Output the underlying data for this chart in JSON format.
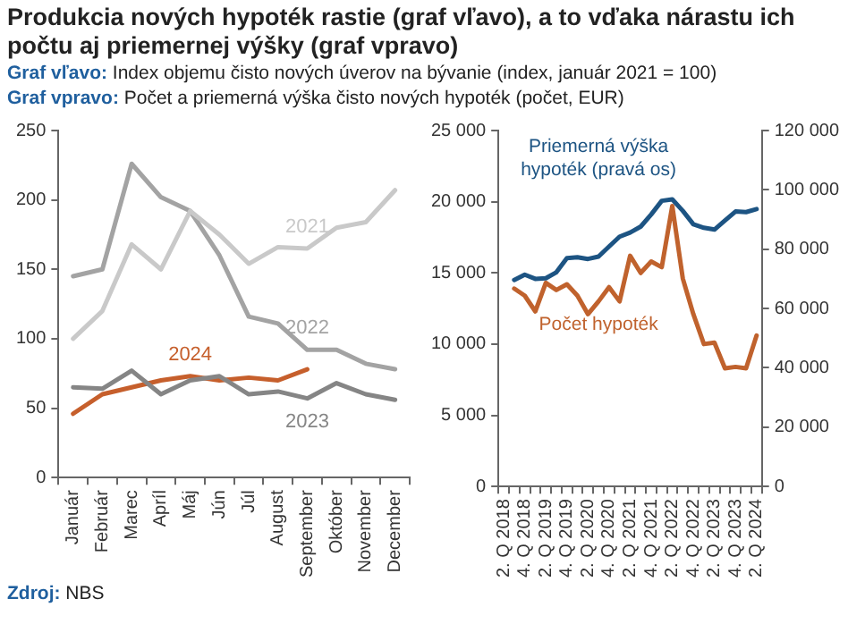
{
  "chart_data": [
    {
      "type": "line",
      "title": "Produkcia nových hypoték rastie (graf vľavo), a to vďaka nárastu ich počtu aj priemernej výšky (graf vpravo)",
      "subtitle": "Graf vľavo: Index objemu čisto nových úverov na bývanie (index, január 2021 = 100)",
      "annotations": [
        "Zdroj: NBS"
      ],
      "categories": [
        "Január",
        "Február",
        "Marec",
        "Apríl",
        "Máj",
        "Jún",
        "Júl",
        "August",
        "September",
        "Október",
        "November",
        "December"
      ],
      "series": [
        {
          "name": "2021",
          "color": "#c9c9c9",
          "values": [
            100,
            120,
            168,
            150,
            192,
            175,
            154,
            166,
            165,
            180,
            184,
            207
          ]
        },
        {
          "name": "2022",
          "color": "#a3a3a3",
          "values": [
            145,
            150,
            226,
            202,
            192,
            160,
            116,
            111,
            92,
            92,
            82,
            78
          ]
        },
        {
          "name": "2023",
          "color": "#858585",
          "values": [
            65,
            64,
            77,
            60,
            70,
            73,
            60,
            62,
            57,
            68,
            60,
            56
          ]
        },
        {
          "name": "2024",
          "color": "#c65f2c",
          "values": [
            46,
            60,
            65,
            70,
            73,
            70,
            72,
            70,
            78,
            null,
            null,
            null
          ]
        }
      ],
      "ylim": [
        0,
        250
      ],
      "yticks": [
        0,
        50,
        100,
        150,
        200,
        250
      ],
      "grid": false,
      "legend": false,
      "marker": "none",
      "line_style": "solid"
    },
    {
      "type": "line",
      "subtitle": "Graf vpravo: Počet a priemerná výška čisto nových hypoték (počet, EUR)",
      "categories": [
        "2. Q 2018",
        null,
        "4. Q 2018",
        null,
        "2. Q 2019",
        null,
        "4. Q 2019",
        null,
        "2. Q 2020",
        null,
        "4. Q 2020",
        null,
        "2. Q 2021",
        null,
        "4. Q 2021",
        null,
        "2. Q 2022",
        null,
        "4. Q 2022",
        null,
        "2. Q 2023",
        null,
        "4. Q 2023",
        null,
        "2. Q 2024"
      ],
      "series": [
        {
          "name": "Priemerná výška hypoték (pravá os)",
          "color": "#1d5483",
          "axis": "y2",
          "values": [
            null,
            69600,
            71400,
            70000,
            70200,
            72200,
            77000,
            77300,
            76700,
            77500,
            80900,
            84200,
            85600,
            87600,
            91700,
            96300,
            96800,
            92900,
            88400,
            87200,
            86600,
            89700,
            92700,
            92500,
            93500
          ]
        },
        {
          "name": "Počet hypoték",
          "color": "#c0622d",
          "values": [
            null,
            13900,
            13400,
            12300,
            14300,
            13800,
            14200,
            13400,
            12100,
            13000,
            14000,
            13000,
            16200,
            15000,
            15800,
            15400,
            19700,
            14600,
            12100,
            10000,
            10100,
            8300,
            8400,
            8300,
            10600
          ]
        }
      ],
      "ylim": [
        0,
        25000
      ],
      "yticks": [
        {
          "value": 0,
          "label": "0"
        },
        {
          "value": 5000,
          "label": "5 000"
        },
        {
          "value": 10000,
          "label": "10 000"
        },
        {
          "value": 15000,
          "label": "15 000"
        },
        {
          "value": 20000,
          "label": "20 000"
        },
        {
          "value": 25000,
          "label": "25 000"
        }
      ],
      "y2lim": [
        0,
        120000
      ],
      "y2ticks": [
        {
          "value": 0,
          "label": "0"
        },
        {
          "value": 20000,
          "label": "20 000"
        },
        {
          "value": 40000,
          "label": "40 000"
        },
        {
          "value": 60000,
          "label": "60 000"
        },
        {
          "value": 80000,
          "label": "80 000"
        },
        {
          "value": 100000,
          "label": "100 000"
        },
        {
          "value": 120000,
          "label": "120 000"
        }
      ],
      "grid": false,
      "legend": false,
      "marker": "none",
      "line_style": "solid"
    }
  ]
}
